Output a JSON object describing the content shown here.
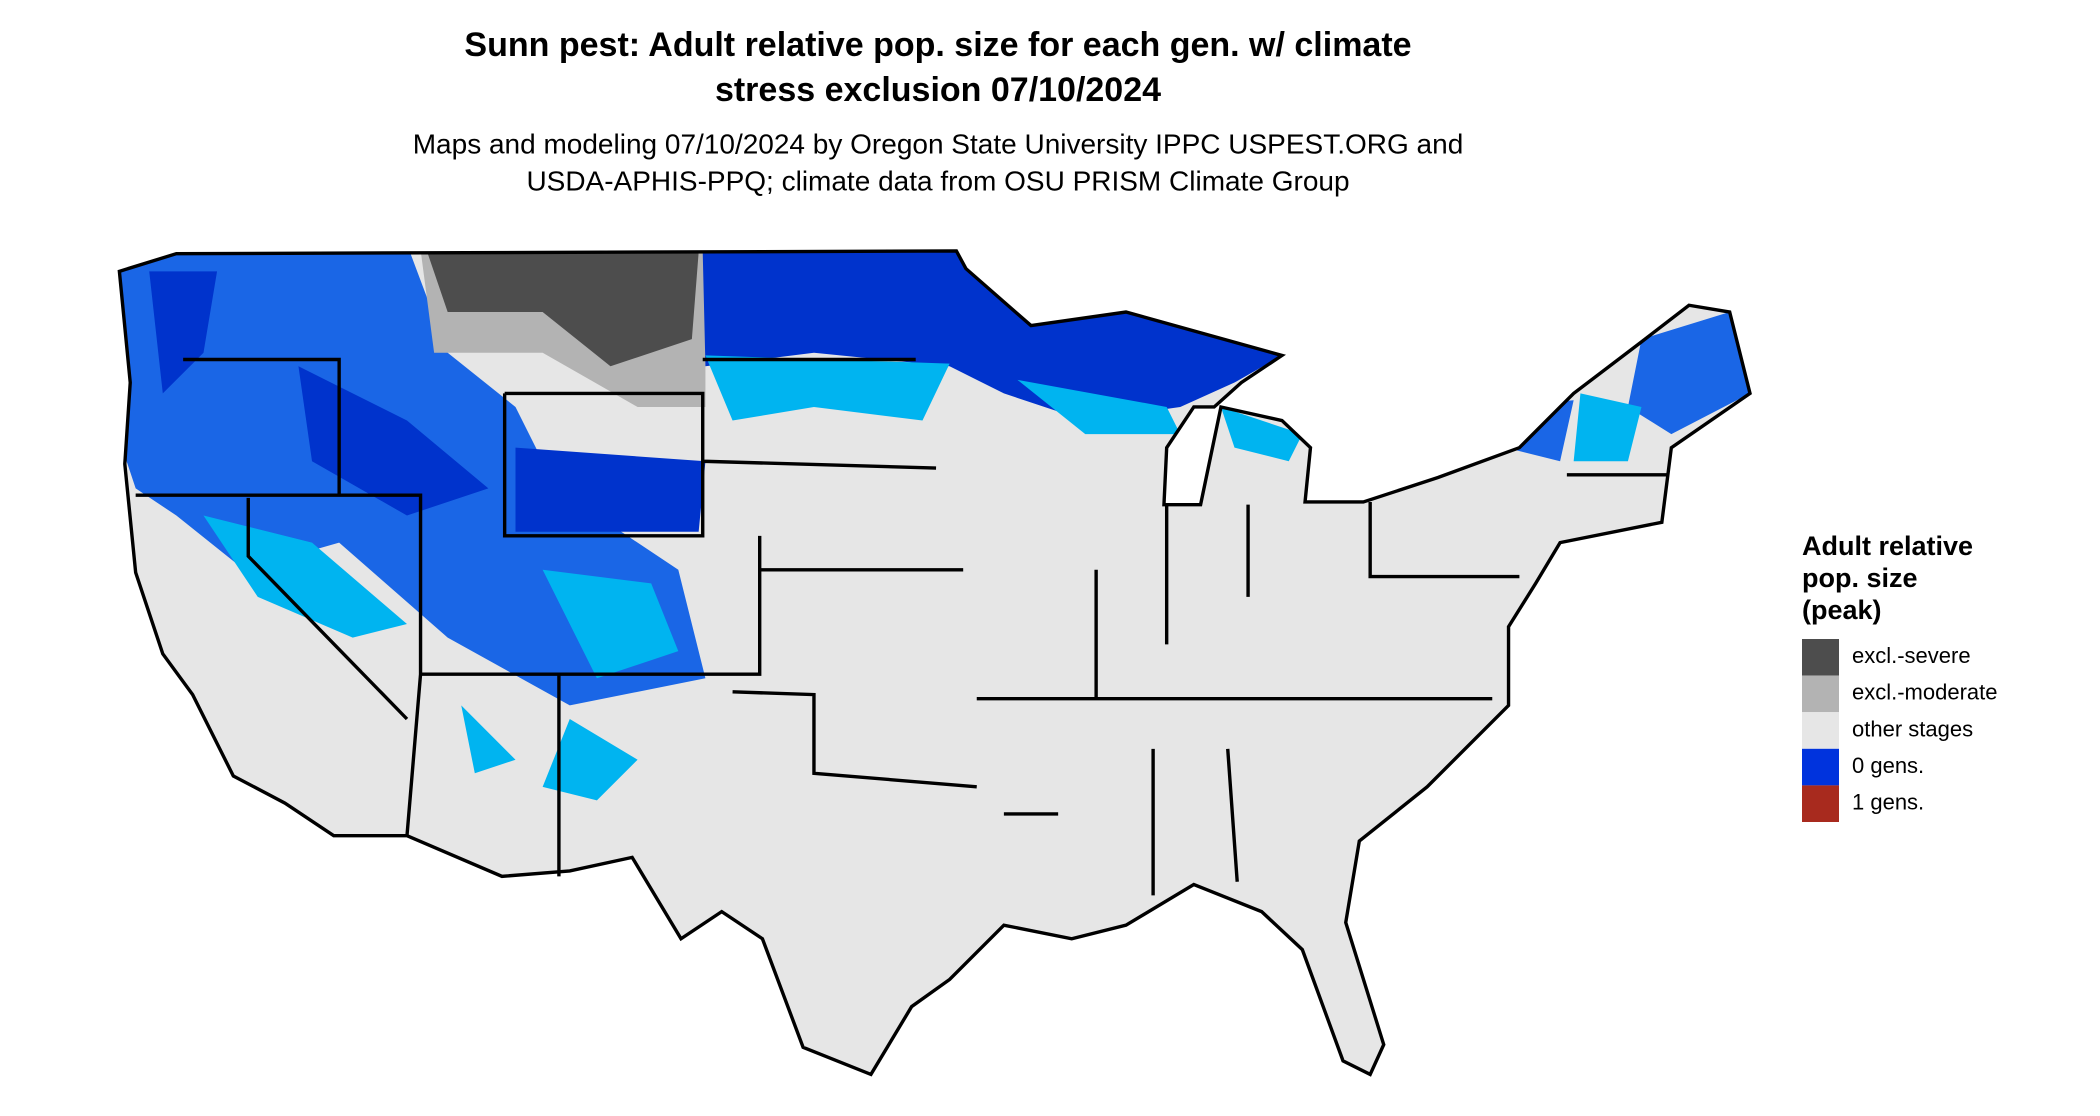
{
  "header": {
    "title": [
      "Sunn pest: Adult relative pop. size for each gen. w/ climate",
      "stress exclusion 07/10/2024"
    ],
    "subtitle": [
      "Maps and modeling 07/10/2024 by Oregon State University IPPC USPEST.ORG and",
      "USDA-APHIS-PPQ; climate data from OSU PRISM Climate Group"
    ]
  },
  "legend": {
    "title": [
      "Adult relative",
      "pop. size",
      "(peak)"
    ],
    "items": [
      {
        "label": "excl.-severe",
        "color": "#4d4d4d"
      },
      {
        "label": "excl.-moderate",
        "color": "#b3b3b3"
      },
      {
        "label": "other stages",
        "color": "#e6e6e6"
      },
      {
        "label": "0 gens.",
        "color": "#0033dd"
      },
      {
        "label": "1 gens.",
        "color": "#a82a1e"
      }
    ]
  }
}
